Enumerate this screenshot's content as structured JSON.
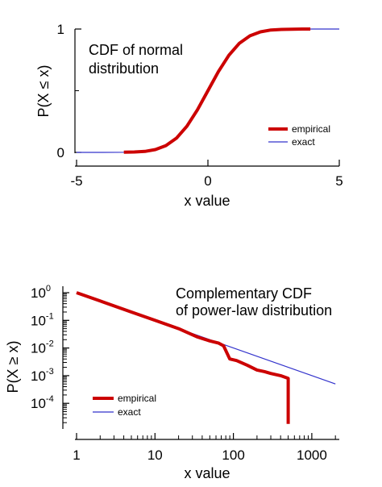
{
  "chart_data": [
    {
      "type": "line",
      "annotation": [
        "CDF of normal",
        "distribution"
      ],
      "xlabel": "x value",
      "ylabel": "P(X ≤ x)",
      "xlim": [
        -5,
        5
      ],
      "ylim": [
        0,
        1
      ],
      "xticks": [
        "-5",
        "0",
        "5"
      ],
      "yticks": [
        "0",
        "1"
      ],
      "legend_position": "bottom-right",
      "series": [
        {
          "name": "empirical",
          "color": "#cc0000",
          "x": [
            -3.2,
            -2.8,
            -2.4,
            -2.0,
            -1.6,
            -1.2,
            -0.8,
            -0.4,
            0.0,
            0.4,
            0.8,
            1.2,
            1.6,
            2.0,
            2.4,
            2.8,
            3.2,
            3.6,
            3.9
          ],
          "y": [
            0.001,
            0.003,
            0.008,
            0.023,
            0.055,
            0.115,
            0.212,
            0.345,
            0.5,
            0.655,
            0.788,
            0.885,
            0.945,
            0.977,
            0.992,
            0.997,
            0.999,
            1.0,
            1.0
          ]
        },
        {
          "name": "exact",
          "color": "#3333cc",
          "x": [
            -5,
            -4,
            -3,
            -2.5,
            -2,
            -1.5,
            -1,
            -0.5,
            0,
            0.5,
            1,
            1.5,
            2,
            2.5,
            3,
            4,
            5
          ],
          "y": [
            0.0,
            0.0,
            0.001,
            0.006,
            0.023,
            0.067,
            0.159,
            0.309,
            0.5,
            0.691,
            0.841,
            0.933,
            0.977,
            0.994,
            0.999,
            1.0,
            1.0
          ]
        }
      ]
    },
    {
      "type": "line",
      "annotation": [
        "Complementary CDF",
        "of power-law distribution"
      ],
      "xlabel": "x value",
      "ylabel": "P(X ≥ x)",
      "xscale": "log",
      "yscale": "log",
      "xlim": [
        1,
        2000
      ],
      "ylim": [
        1.5e-05,
        1.3
      ],
      "xticks": [
        "1",
        "10",
        "100",
        "1000"
      ],
      "yticks": [
        {
          "base": "10",
          "exp": "0"
        },
        {
          "base": "10",
          "exp": "-1"
        },
        {
          "base": "10",
          "exp": "-2"
        },
        {
          "base": "10",
          "exp": "-3"
        },
        {
          "base": "10",
          "exp": "-4"
        }
      ],
      "legend_position": "bottom-left",
      "series": [
        {
          "name": "empirical",
          "color": "#cc0000",
          "x": [
            1,
            2,
            5,
            10,
            20,
            30,
            35,
            50,
            65,
            75,
            90,
            110,
            150,
            200,
            250,
            300,
            400,
            500,
            500
          ],
          "y": [
            1.0,
            0.5,
            0.2,
            0.1,
            0.05,
            0.03,
            0.025,
            0.018,
            0.015,
            0.012,
            0.004,
            0.0035,
            0.0024,
            0.0016,
            0.0014,
            0.0012,
            0.001,
            0.0008,
            1.8e-05
          ]
        },
        {
          "name": "exact",
          "color": "#3333cc",
          "x": [
            1,
            2000
          ],
          "y": [
            1.0,
            0.0005
          ]
        }
      ]
    }
  ]
}
